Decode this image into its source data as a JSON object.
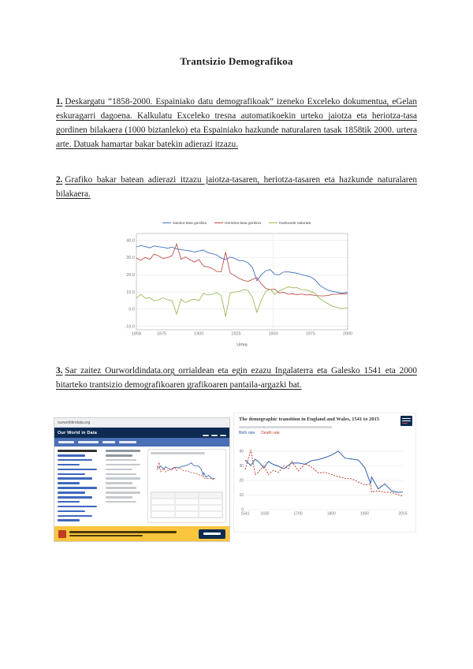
{
  "document": {
    "title": "Trantsizio Demografikoa",
    "tasks": [
      {
        "number": "1.",
        "text": "Deskargatu “1858-2000. Espainiako datu demografikoak” izeneko Exceleko dokumentua, eGelan eskuragarri dagoena. Kalkulatu Exceleko tresna automatikoekin urteko jaiotza eta heriotza-tasa gordinen bilakaera (1000 biztanleko) eta Espainiako hazkunde naturalaren tasak 1858tik 2000. urtera arte. Datuak hamartar bakar batekin adierazi itzazu."
      },
      {
        "number": "2.",
        "text": "Grafiko bakar batean adierazi itzazu jaiotza-tasaren, heriotza-tasaren eta hazkunde naturalaren bilakaera."
      },
      {
        "number": "3.",
        "text": "Sar zaitez Ourworldindata.org orrialdean eta egin ezazu Ingalaterra eta Galesko 1541 eta 2000 bitarteko trantsizio demografikoaren grafikoaren pantaila-argazki bat."
      }
    ]
  },
  "screenshot": {
    "browser_url": "ourworldindata.org",
    "nav_title": "Our World in Data"
  },
  "colors": {
    "owid_navy": "#0d2b52",
    "owid_subnav_blue": "#4a6fb5",
    "banner_yellow": "#fbc53d",
    "banner_red": "#c23b22",
    "link_blue": "#3e68bd"
  },
  "chart_data": [
    {
      "type": "line",
      "title": "",
      "xlabel": "Urtea",
      "ylabel": "",
      "xlim": [
        1858,
        2000
      ],
      "ylim": [
        -12,
        44
      ],
      "yticks": [
        [
          -10,
          "-10.0"
        ],
        [
          0,
          "0.0"
        ],
        [
          10,
          "10.0"
        ],
        [
          20,
          "20.0"
        ],
        [
          30,
          "30.0"
        ],
        [
          40,
          "40.0"
        ]
      ],
      "xticks": [
        [
          1858,
          "1858"
        ],
        [
          1875,
          "1875"
        ],
        [
          1900,
          "1900"
        ],
        [
          1925,
          "1925"
        ],
        [
          1950,
          "1950"
        ],
        [
          1975,
          "1975"
        ],
        [
          2000,
          "2000"
        ]
      ],
      "xgrid": [
        1950
      ],
      "x": [
        1858,
        1861,
        1864,
        1867,
        1870,
        1873,
        1876,
        1879,
        1882,
        1885,
        1888,
        1891,
        1894,
        1897,
        1900,
        1903,
        1906,
        1909,
        1912,
        1915,
        1918,
        1921,
        1924,
        1927,
        1930,
        1933,
        1936,
        1939,
        1942,
        1945,
        1948,
        1951,
        1954,
        1957,
        1960,
        1963,
        1966,
        1969,
        1972,
        1975,
        1978,
        1981,
        1984,
        1987,
        1990,
        1993,
        1996,
        2000
      ],
      "series": [
        {
          "name": "Jaiotza-tasa gordina",
          "color": "#4472c4",
          "values": [
            36.2,
            37.0,
            36.4,
            35.7,
            36.8,
            36.3,
            36.0,
            35.4,
            36.1,
            35.0,
            34.7,
            34.2,
            33.9,
            33.2,
            33.8,
            34.4,
            32.9,
            32.3,
            31.5,
            29.7,
            28.8,
            30.3,
            29.6,
            28.2,
            28.1,
            27.0,
            24.3,
            16.5,
            20.0,
            22.4,
            23.0,
            20.2,
            20.0,
            21.6,
            21.7,
            21.3,
            20.9,
            20.1,
            19.5,
            18.8,
            17.2,
            14.1,
            12.3,
            11.0,
            10.3,
            9.8,
            9.2,
            9.9
          ]
        },
        {
          "name": "Heriotza-tasa gordina",
          "color": "#c0504d",
          "values": [
            29.7,
            28.4,
            30.1,
            29.0,
            32.0,
            30.9,
            29.4,
            30.0,
            31.1,
            37.9,
            29.0,
            30.4,
            28.8,
            27.4,
            28.9,
            25.1,
            24.6,
            23.6,
            21.9,
            21.8,
            33.2,
            21.0,
            19.6,
            17.9,
            16.8,
            16.1,
            17.3,
            18.4,
            14.7,
            12.0,
            11.3,
            11.6,
            9.4,
            9.8,
            8.7,
            8.9,
            8.4,
            8.8,
            8.3,
            8.4,
            8.0,
            7.8,
            7.7,
            8.0,
            8.6,
            8.7,
            8.9,
            9.0
          ]
        },
        {
          "name": "Hazkunde naturala",
          "color": "#9bbb59",
          "values": [
            6.5,
            8.6,
            6.3,
            6.7,
            4.8,
            5.4,
            6.6,
            5.4,
            5.0,
            -2.9,
            5.7,
            3.8,
            5.1,
            5.8,
            4.9,
            9.3,
            8.3,
            8.7,
            9.6,
            7.9,
            -4.4,
            9.3,
            10.0,
            10.3,
            11.3,
            10.9,
            7.0,
            -1.9,
            5.3,
            10.4,
            11.7,
            8.6,
            10.6,
            11.8,
            13.0,
            12.4,
            12.5,
            11.3,
            11.2,
            10.4,
            9.2,
            6.3,
            4.6,
            3.0,
            1.7,
            1.1,
            0.3,
            0.9
          ]
        }
      ]
    },
    {
      "type": "line",
      "title": "The demographic transition in England and Wales, 1541 to 2015",
      "xlabel": "",
      "ylabel": "",
      "xlim": [
        1541,
        2015
      ],
      "ylim": [
        0,
        48
      ],
      "yticks": [
        [
          0,
          "0"
        ],
        [
          10,
          "10"
        ],
        [
          20,
          "20"
        ],
        [
          30,
          "30"
        ],
        [
          40,
          "40"
        ]
      ],
      "xticks": [
        [
          1541,
          "1541"
        ],
        [
          1600,
          "1600"
        ],
        [
          1700,
          "1700"
        ],
        [
          1800,
          "1800"
        ],
        [
          1900,
          "1900"
        ],
        [
          2015,
          "2015"
        ]
      ],
      "x": [
        1541,
        1558,
        1571,
        1581,
        1597,
        1611,
        1625,
        1641,
        1658,
        1671,
        1681,
        1701,
        1721,
        1741,
        1761,
        1781,
        1801,
        1821,
        1841,
        1861,
        1881,
        1901,
        1918,
        1921,
        1941,
        1961,
        1981,
        2001,
        2015
      ],
      "series": [
        {
          "name": "Birth rate",
          "color": "#3360a9",
          "values": [
            33.9,
            30.2,
            34.5,
            32.8,
            28.5,
            33.0,
            31.0,
            29.6,
            28.0,
            30.4,
            31.8,
            32.0,
            31.0,
            33.5,
            34.2,
            35.6,
            37.3,
            40.0,
            35.2,
            34.6,
            33.9,
            28.6,
            17.7,
            22.4,
            14.2,
            17.6,
            12.8,
            11.8,
            12.0
          ]
        },
        {
          "name": "Death rate",
          "color": "#c0402e",
          "dash": "2 1.6",
          "values": [
            27.5,
            41.0,
            24.0,
            25.5,
            30.2,
            24.0,
            26.8,
            25.5,
            30.0,
            28.0,
            33.0,
            26.5,
            31.5,
            29.0,
            25.0,
            25.5,
            24.0,
            22.5,
            21.4,
            21.2,
            18.9,
            16.9,
            17.5,
            12.1,
            12.8,
            11.9,
            11.7,
            10.2,
            9.2
          ]
        }
      ]
    }
  ]
}
